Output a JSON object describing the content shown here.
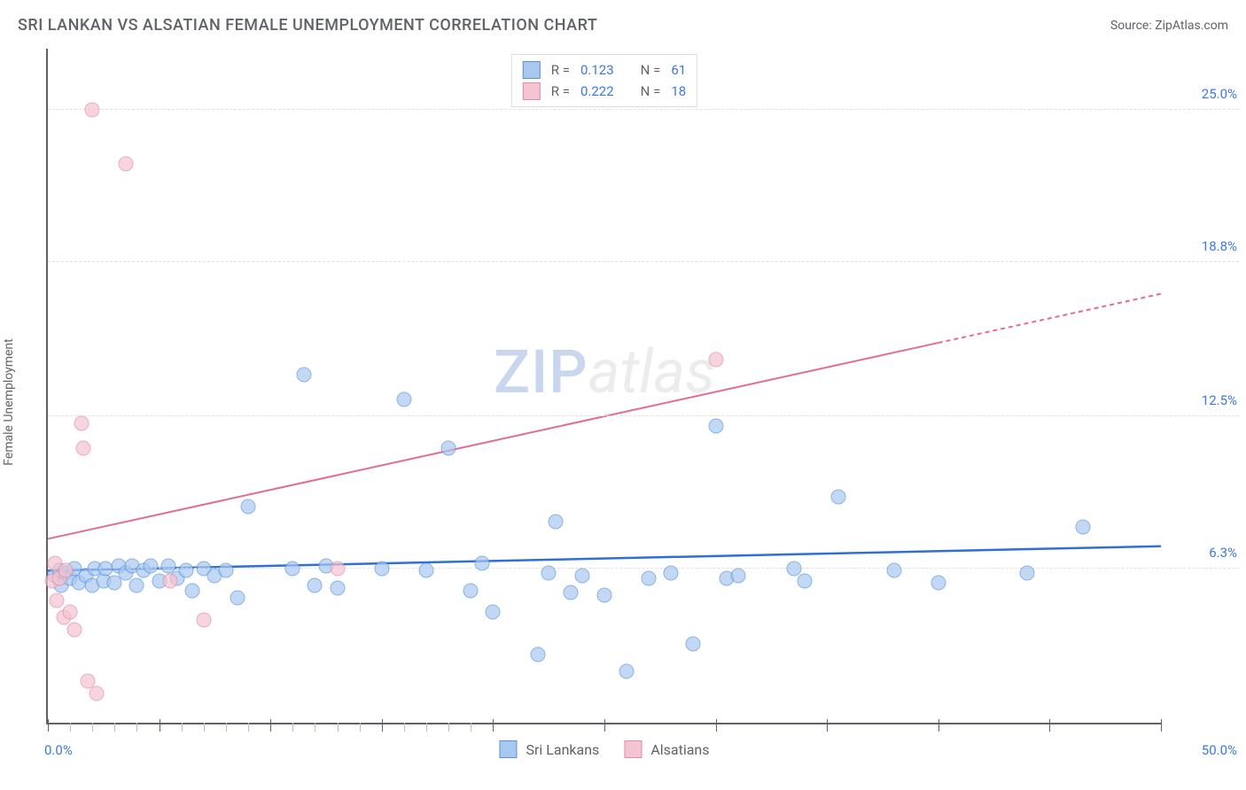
{
  "chart": {
    "type": "scatter",
    "title": "SRI LANKAN VS ALSATIAN FEMALE UNEMPLOYMENT CORRELATION CHART",
    "source_label": "Source: ZipAtlas.com",
    "yaxis_label": "Female Unemployment",
    "watermark": {
      "part1": "ZIP",
      "part2": "atlas"
    },
    "background_color": "#ffffff",
    "grid_color": "#e0e0e0",
    "axis_color": "#5f6368",
    "text_color": "#5f6368",
    "value_color": "#3b78e7",
    "xlim": [
      0,
      50
    ],
    "ylim": [
      0,
      27.5
    ],
    "x_start_label": "0.0%",
    "x_end_label": "50.0%",
    "y_gridlines": [
      {
        "value": 6.3,
        "label": "6.3%"
      },
      {
        "value": 12.5,
        "label": "12.5%"
      },
      {
        "value": 18.8,
        "label": "18.8%"
      },
      {
        "value": 25.0,
        "label": "25.0%"
      }
    ],
    "x_ticks_major": [
      0,
      5,
      10,
      15,
      20,
      25,
      30,
      35,
      40,
      45,
      50
    ],
    "x_ticks_minor": [
      1,
      2,
      3,
      4,
      6,
      7,
      8,
      9,
      11,
      12,
      13,
      14,
      16,
      17,
      18,
      19
    ],
    "legend_top": [
      {
        "series_key": "sri_lankans",
        "r_label": "R =",
        "r_value": "0.123",
        "n_label": "N =",
        "n_value": "61"
      },
      {
        "series_key": "alsatians",
        "r_label": "R =",
        "r_value": "0.222",
        "n_label": "N =",
        "n_value": "18"
      }
    ],
    "legend_bottom": [
      {
        "series_key": "sri_lankans",
        "label": "Sri Lankans"
      },
      {
        "series_key": "alsatians",
        "label": "Alsatians"
      }
    ],
    "series": {
      "sri_lankans": {
        "fill_color": "#a9c8f0",
        "stroke_color": "#5a93d9",
        "line_color": "#2f6fd6",
        "marker_radius": 8.5,
        "marker_opacity": 0.7,
        "trend": {
          "x1": 0,
          "y1": 6.2,
          "x2": 50,
          "y2": 7.2,
          "width": 2.5,
          "dash_from_x": null
        },
        "points": [
          [
            0.3,
            6.0
          ],
          [
            0.5,
            6.2
          ],
          [
            0.6,
            5.6
          ],
          [
            0.8,
            6.1
          ],
          [
            1.0,
            5.9
          ],
          [
            1.2,
            6.3
          ],
          [
            1.4,
            5.7
          ],
          [
            1.7,
            6.0
          ],
          [
            2.0,
            5.6
          ],
          [
            2.1,
            6.3
          ],
          [
            2.5,
            5.8
          ],
          [
            2.6,
            6.3
          ],
          [
            3.0,
            5.7
          ],
          [
            3.2,
            6.4
          ],
          [
            3.5,
            6.1
          ],
          [
            3.8,
            6.4
          ],
          [
            4.0,
            5.6
          ],
          [
            4.3,
            6.2
          ],
          [
            4.6,
            6.4
          ],
          [
            5.0,
            5.8
          ],
          [
            5.4,
            6.4
          ],
          [
            5.8,
            5.9
          ],
          [
            6.2,
            6.2
          ],
          [
            6.5,
            5.4
          ],
          [
            7.0,
            6.3
          ],
          [
            7.5,
            6.0
          ],
          [
            8.0,
            6.2
          ],
          [
            8.5,
            5.1
          ],
          [
            9.0,
            8.8
          ],
          [
            11.0,
            6.3
          ],
          [
            11.5,
            14.2
          ],
          [
            12.0,
            5.6
          ],
          [
            12.5,
            6.4
          ],
          [
            13.0,
            5.5
          ],
          [
            15.0,
            6.3
          ],
          [
            16.0,
            13.2
          ],
          [
            17.0,
            6.2
          ],
          [
            18.0,
            11.2
          ],
          [
            19.0,
            5.4
          ],
          [
            19.5,
            6.5
          ],
          [
            20.0,
            4.5
          ],
          [
            22.0,
            2.8
          ],
          [
            22.5,
            6.1
          ],
          [
            22.8,
            8.2
          ],
          [
            23.5,
            5.3
          ],
          [
            24.0,
            6.0
          ],
          [
            25.0,
            5.2
          ],
          [
            26.0,
            2.1
          ],
          [
            27.0,
            5.9
          ],
          [
            28.0,
            6.1
          ],
          [
            29.0,
            3.2
          ],
          [
            30.0,
            12.1
          ],
          [
            30.5,
            5.9
          ],
          [
            31.0,
            6.0
          ],
          [
            33.5,
            6.3
          ],
          [
            34.0,
            5.8
          ],
          [
            35.5,
            9.2
          ],
          [
            38.0,
            6.2
          ],
          [
            40.0,
            5.7
          ],
          [
            44.0,
            6.1
          ],
          [
            46.5,
            8.0
          ]
        ]
      },
      "alsatians": {
        "fill_color": "#f3c4d1",
        "stroke_color": "#e589a8",
        "line_color": "#e36b94",
        "marker_radius": 8.5,
        "marker_opacity": 0.7,
        "trend": {
          "x1": 0,
          "y1": 7.5,
          "x2": 50,
          "y2": 17.5,
          "width": 2,
          "dash_from_x": 40
        },
        "points": [
          [
            0.2,
            5.8
          ],
          [
            0.3,
            6.5
          ],
          [
            0.4,
            5.0
          ],
          [
            0.5,
            5.9
          ],
          [
            0.7,
            4.3
          ],
          [
            0.8,
            6.2
          ],
          [
            1.0,
            4.5
          ],
          [
            1.2,
            3.8
          ],
          [
            1.5,
            12.2
          ],
          [
            1.6,
            11.2
          ],
          [
            1.8,
            1.7
          ],
          [
            2.0,
            25.0
          ],
          [
            2.2,
            1.2
          ],
          [
            3.5,
            22.8
          ],
          [
            5.5,
            5.8
          ],
          [
            7.0,
            4.2
          ],
          [
            13.0,
            6.3
          ],
          [
            30.0,
            14.8
          ]
        ]
      }
    }
  }
}
